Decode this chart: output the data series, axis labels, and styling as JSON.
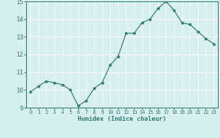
{
  "x": [
    0,
    1,
    2,
    3,
    4,
    5,
    6,
    7,
    8,
    9,
    10,
    11,
    12,
    13,
    14,
    15,
    16,
    17,
    18,
    19,
    20,
    21,
    22,
    23
  ],
  "y": [
    9.9,
    10.2,
    10.5,
    10.4,
    10.3,
    10.0,
    9.1,
    9.4,
    10.1,
    10.4,
    11.4,
    11.9,
    13.2,
    13.2,
    13.8,
    14.0,
    14.6,
    15.0,
    14.5,
    13.8,
    13.7,
    13.3,
    12.9,
    12.6
  ],
  "xlim": [
    -0.5,
    23.5
  ],
  "ylim": [
    9,
    15
  ],
  "yticks": [
    9,
    10,
    11,
    12,
    13,
    14,
    15
  ],
  "xticks": [
    0,
    1,
    2,
    3,
    4,
    5,
    6,
    7,
    8,
    9,
    10,
    11,
    12,
    13,
    14,
    15,
    16,
    17,
    18,
    19,
    20,
    21,
    22,
    23
  ],
  "xlabel": "Humidex (Indice chaleur)",
  "line_color": "#2e7d6e",
  "marker": "o",
  "marker_size": 2.0,
  "bg_color": "#d6f0f0",
  "grid_color": "#ffffff",
  "spine_color": "#2e7d6e",
  "tick_color": "#2e7d6e",
  "label_color": "#2e7d6e"
}
